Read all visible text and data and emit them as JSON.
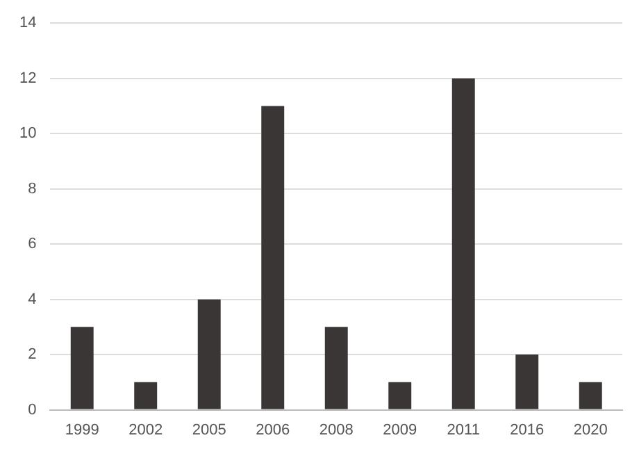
{
  "chart_data": {
    "type": "bar",
    "categories": [
      "1999",
      "2002",
      "2005",
      "2006",
      "2008",
      "2009",
      "2011",
      "2016",
      "2020"
    ],
    "values": [
      3,
      1,
      4,
      11,
      3,
      1,
      12,
      2,
      1
    ],
    "color": "#3a3636",
    "ylim": [
      0,
      14
    ],
    "yticks": [
      0,
      2,
      4,
      6,
      8,
      10,
      12,
      14
    ],
    "grid": "y"
  }
}
